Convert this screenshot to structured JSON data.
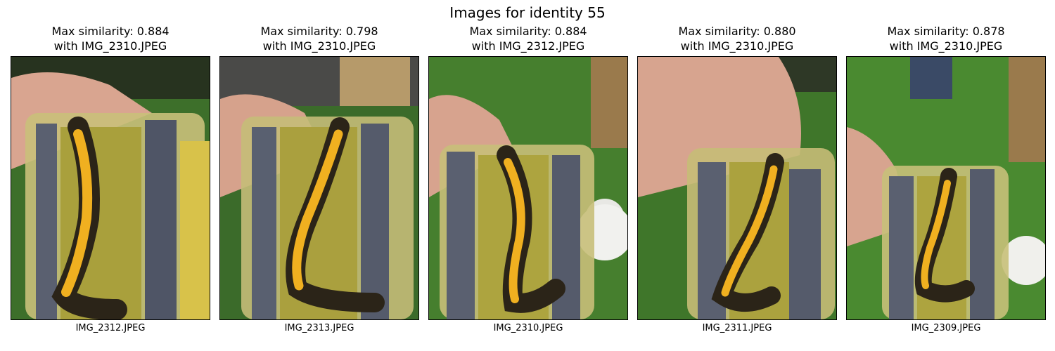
{
  "figure": {
    "title": "Images for identity 55"
  },
  "panels": [
    {
      "title_line1": "Max similarity: 0.884",
      "title_line2": "with IMG_2310.JPEG",
      "caption": "IMG_2312.JPEG"
    },
    {
      "title_line1": "Max similarity: 0.798",
      "title_line2": "with IMG_2310.JPEG",
      "caption": "IMG_2313.JPEG"
    },
    {
      "title_line1": "Max similarity: 0.884",
      "title_line2": "with IMG_2312.JPEG",
      "caption": "IMG_2310.JPEG"
    },
    {
      "title_line1": "Max similarity: 0.880",
      "title_line2": "with IMG_2310.JPEG",
      "caption": "IMG_2311.JPEG"
    },
    {
      "title_line1": "Max similarity: 0.878",
      "title_line2": "with IMG_2310.JPEG",
      "caption": "IMG_2309.JPEG"
    }
  ],
  "colors": {
    "grass": "#3f7a2a",
    "newt_belly": "#f0b020",
    "newt_back": "#2b2418",
    "foam": "#b8b046"
  }
}
